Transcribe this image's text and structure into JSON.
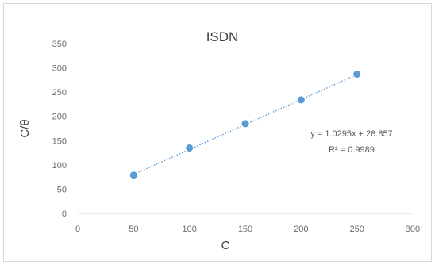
{
  "chart_data": {
    "type": "scatter",
    "title": "ISDN",
    "xlabel": "C",
    "ylabel": "C/θ",
    "xlim": [
      0,
      300
    ],
    "ylim": [
      0,
      350
    ],
    "x_ticks": [
      0,
      50,
      100,
      150,
      200,
      250,
      300
    ],
    "y_ticks": [
      0,
      50,
      100,
      150,
      200,
      250,
      300,
      350
    ],
    "grid": false,
    "legend": "none",
    "series": [
      {
        "x": [
          50,
          100,
          150,
          200,
          250
        ],
        "y": [
          79,
          135,
          185,
          234,
          287
        ],
        "color": "#5b9bd5"
      }
    ],
    "trendline": {
      "type": "linear",
      "slope": 1.0295,
      "intercept": 28.857,
      "style": "dotted",
      "color": "#5b9bd5",
      "equation_text": "y = 1.0295x + 28.857",
      "r2_text": "R² = 0.9989"
    }
  }
}
